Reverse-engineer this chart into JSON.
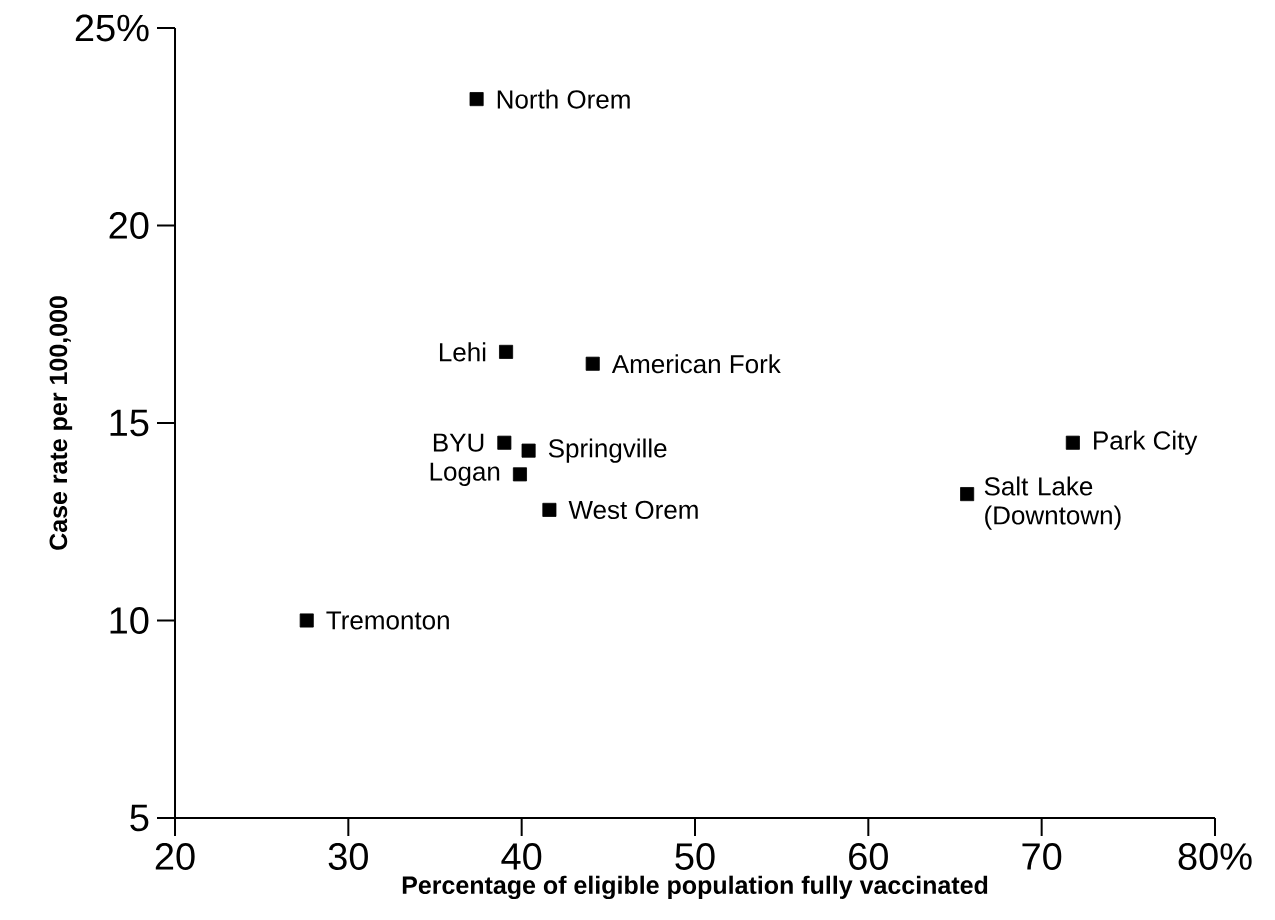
{
  "chart_data": {
    "type": "scatter",
    "xlabel": "Percentage of eligible population fully vaccinated",
    "ylabel": "Case rate per 100,000",
    "x": [
      37.4,
      39.1,
      44.1,
      39.0,
      40.4,
      39.9,
      41.6,
      27.6,
      65.7,
      71.8
    ],
    "values": [
      23.2,
      16.8,
      16.5,
      14.5,
      14.3,
      13.7,
      12.8,
      10.0,
      13.2,
      14.5
    ],
    "color": "#000000",
    "marker": "square",
    "xlim": [
      20,
      80
    ],
    "ylim": [
      5,
      25
    ],
    "xticks": [
      20,
      30,
      40,
      50,
      60,
      70,
      {
        "value": 80,
        "label": "80%"
      }
    ],
    "yticks": [
      5,
      10,
      15,
      20,
      {
        "value": 25,
        "label": "25%"
      }
    ],
    "annotations": [
      {
        "text": "North Orem",
        "x": 37.4,
        "y": 23.2
      },
      {
        "text": "Lehi",
        "x": 39.1,
        "y": 16.8
      },
      {
        "text": "American Fork",
        "x": 44.1,
        "y": 16.5
      },
      {
        "text": "BYU",
        "x": 39.0,
        "y": 14.5
      },
      {
        "text": "Springville",
        "x": 40.4,
        "y": 14.3
      },
      {
        "text": "Logan",
        "x": 39.9,
        "y": 13.7
      },
      {
        "text": "West Orem",
        "x": 41.6,
        "y": 12.8
      },
      {
        "text": "Tremonton",
        "x": 27.6,
        "y": 10.0
      },
      {
        "text": "Salt Lake (Downtown)",
        "x": 65.7,
        "y": 13.2
      },
      {
        "text": "Park City",
        "x": 71.8,
        "y": 14.5
      }
    ]
  }
}
